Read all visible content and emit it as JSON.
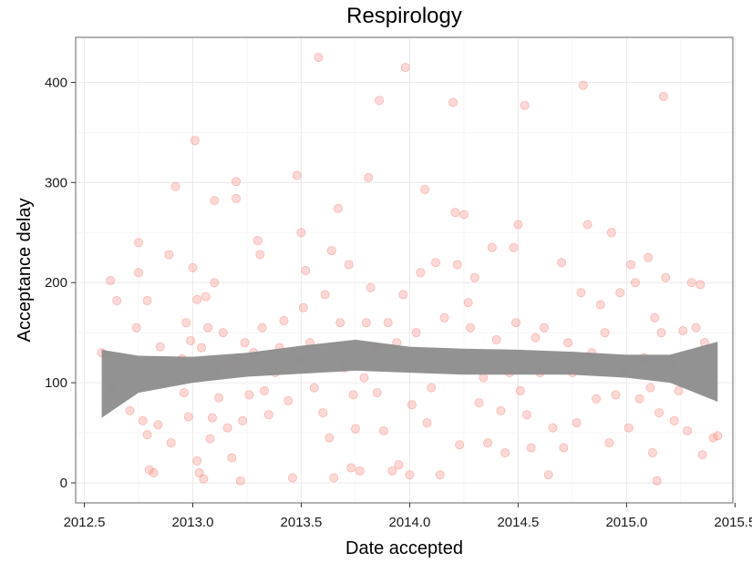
{
  "chart_data": {
    "type": "scatter",
    "title": "Respirology",
    "xlabel": "Date accepted",
    "ylabel": "Acceptance delay",
    "xlim": [
      2012.46,
      2015.49
    ],
    "ylim": [
      -20,
      445
    ],
    "x_ticks": [
      2012.5,
      2013.0,
      2013.5,
      2014.0,
      2014.5,
      2015.0,
      2015.5
    ],
    "x_tick_labels": [
      "2012.5",
      "2013.0",
      "2013.5",
      "2014.0",
      "2014.5",
      "2015.0",
      "2015.5"
    ],
    "y_ticks": [
      0,
      100,
      200,
      300,
      400
    ],
    "y_tick_labels": [
      "0",
      "100",
      "200",
      "300",
      "400"
    ],
    "grid": true,
    "colors": {
      "points": "#f8766d",
      "band": "#8c8c8c",
      "panel_border": "#7f7f7f",
      "grid": "#ebebeb"
    },
    "points": [
      [
        2012.58,
        130
      ],
      [
        2012.62,
        202
      ],
      [
        2012.63,
        98
      ],
      [
        2012.65,
        182
      ],
      [
        2012.68,
        112
      ],
      [
        2012.71,
        72
      ],
      [
        2012.72,
        95
      ],
      [
        2012.74,
        155
      ],
      [
        2012.75,
        240
      ],
      [
        2012.75,
        210
      ],
      [
        2012.77,
        62
      ],
      [
        2012.79,
        182
      ],
      [
        2012.79,
        48
      ],
      [
        2012.8,
        13
      ],
      [
        2012.82,
        10
      ],
      [
        2012.84,
        58
      ],
      [
        2012.85,
        136
      ],
      [
        2012.87,
        100
      ],
      [
        2012.89,
        228
      ],
      [
        2012.9,
        40
      ],
      [
        2012.91,
        118
      ],
      [
        2012.92,
        296
      ],
      [
        2012.95,
        124
      ],
      [
        2012.96,
        90
      ],
      [
        2012.97,
        160
      ],
      [
        2012.98,
        66
      ],
      [
        2012.99,
        142
      ],
      [
        2013.0,
        215
      ],
      [
        2013.01,
        342
      ],
      [
        2013.02,
        183
      ],
      [
        2013.02,
        22
      ],
      [
        2013.03,
        10
      ],
      [
        2013.04,
        135
      ],
      [
        2013.05,
        4
      ],
      [
        2013.06,
        186
      ],
      [
        2013.06,
        108
      ],
      [
        2013.07,
        155
      ],
      [
        2013.08,
        44
      ],
      [
        2013.09,
        65
      ],
      [
        2013.1,
        282
      ],
      [
        2013.1,
        200
      ],
      [
        2013.11,
        112
      ],
      [
        2013.12,
        85
      ],
      [
        2013.14,
        150
      ],
      [
        2013.16,
        55
      ],
      [
        2013.17,
        118
      ],
      [
        2013.18,
        25
      ],
      [
        2013.2,
        301
      ],
      [
        2013.2,
        284
      ],
      [
        2013.21,
        125
      ],
      [
        2013.22,
        2
      ],
      [
        2013.23,
        62
      ],
      [
        2013.24,
        140
      ],
      [
        2013.26,
        88
      ],
      [
        2013.28,
        130
      ],
      [
        2013.3,
        242
      ],
      [
        2013.31,
        228
      ],
      [
        2013.32,
        155
      ],
      [
        2013.33,
        92
      ],
      [
        2013.35,
        68
      ],
      [
        2013.38,
        110
      ],
      [
        2013.4,
        135
      ],
      [
        2013.42,
        162
      ],
      [
        2013.44,
        82
      ],
      [
        2013.46,
        5
      ],
      [
        2013.48,
        307
      ],
      [
        2013.49,
        122
      ],
      [
        2013.5,
        250
      ],
      [
        2013.51,
        175
      ],
      [
        2013.52,
        212
      ],
      [
        2013.54,
        140
      ],
      [
        2013.56,
        95
      ],
      [
        2013.58,
        425
      ],
      [
        2013.6,
        70
      ],
      [
        2013.61,
        188
      ],
      [
        2013.63,
        45
      ],
      [
        2013.64,
        232
      ],
      [
        2013.65,
        5
      ],
      [
        2013.67,
        274
      ],
      [
        2013.68,
        160
      ],
      [
        2013.7,
        115
      ],
      [
        2013.72,
        218
      ],
      [
        2013.73,
        15
      ],
      [
        2013.74,
        88
      ],
      [
        2013.75,
        54
      ],
      [
        2013.77,
        12
      ],
      [
        2013.79,
        105
      ],
      [
        2013.8,
        160
      ],
      [
        2013.81,
        305
      ],
      [
        2013.82,
        195
      ],
      [
        2013.84,
        135
      ],
      [
        2013.85,
        90
      ],
      [
        2013.86,
        382
      ],
      [
        2013.88,
        52
      ],
      [
        2013.9,
        160
      ],
      [
        2013.92,
        12
      ],
      [
        2013.94,
        140
      ],
      [
        2013.95,
        18
      ],
      [
        2013.97,
        188
      ],
      [
        2013.98,
        415
      ],
      [
        2014.0,
        8
      ],
      [
        2014.01,
        78
      ],
      [
        2014.03,
        150
      ],
      [
        2014.05,
        210
      ],
      [
        2014.07,
        293
      ],
      [
        2014.08,
        60
      ],
      [
        2014.1,
        95
      ],
      [
        2014.12,
        220
      ],
      [
        2014.14,
        8
      ],
      [
        2014.16,
        165
      ],
      [
        2014.18,
        115
      ],
      [
        2014.2,
        380
      ],
      [
        2014.21,
        270
      ],
      [
        2014.22,
        218
      ],
      [
        2014.23,
        38
      ],
      [
        2014.25,
        268
      ],
      [
        2014.27,
        180
      ],
      [
        2014.28,
        155
      ],
      [
        2014.3,
        205
      ],
      [
        2014.32,
        80
      ],
      [
        2014.34,
        105
      ],
      [
        2014.36,
        40
      ],
      [
        2014.38,
        235
      ],
      [
        2014.4,
        143
      ],
      [
        2014.42,
        72
      ],
      [
        2014.44,
        30
      ],
      [
        2014.46,
        110
      ],
      [
        2014.48,
        235
      ],
      [
        2014.49,
        160
      ],
      [
        2014.5,
        258
      ],
      [
        2014.51,
        92
      ],
      [
        2014.53,
        377
      ],
      [
        2014.54,
        68
      ],
      [
        2014.56,
        35
      ],
      [
        2014.58,
        145
      ],
      [
        2014.6,
        110
      ],
      [
        2014.62,
        155
      ],
      [
        2014.64,
        8
      ],
      [
        2014.66,
        55
      ],
      [
        2014.68,
        120
      ],
      [
        2014.7,
        220
      ],
      [
        2014.71,
        35
      ],
      [
        2014.73,
        140
      ],
      [
        2014.75,
        110
      ],
      [
        2014.77,
        60
      ],
      [
        2014.79,
        190
      ],
      [
        2014.8,
        397
      ],
      [
        2014.82,
        258
      ],
      [
        2014.84,
        130
      ],
      [
        2014.86,
        84
      ],
      [
        2014.88,
        178
      ],
      [
        2014.9,
        150
      ],
      [
        2014.92,
        40
      ],
      [
        2014.93,
        250
      ],
      [
        2014.95,
        88
      ],
      [
        2014.97,
        190
      ],
      [
        2014.99,
        110
      ],
      [
        2015.01,
        55
      ],
      [
        2015.02,
        218
      ],
      [
        2015.04,
        200
      ],
      [
        2015.06,
        84
      ],
      [
        2015.08,
        125
      ],
      [
        2015.1,
        225
      ],
      [
        2015.11,
        95
      ],
      [
        2015.12,
        30
      ],
      [
        2015.13,
        165
      ],
      [
        2015.14,
        2
      ],
      [
        2015.15,
        70
      ],
      [
        2015.16,
        150
      ],
      [
        2015.17,
        386
      ],
      [
        2015.18,
        205
      ],
      [
        2015.2,
        120
      ],
      [
        2015.22,
        62
      ],
      [
        2015.24,
        92
      ],
      [
        2015.26,
        152
      ],
      [
        2015.28,
        52
      ],
      [
        2015.3,
        200
      ],
      [
        2015.32,
        155
      ],
      [
        2015.34,
        198
      ],
      [
        2015.35,
        28
      ],
      [
        2015.36,
        140
      ],
      [
        2015.38,
        118
      ],
      [
        2015.4,
        45
      ],
      [
        2015.42,
        47
      ]
    ],
    "smooth_band": {
      "x": [
        2012.58,
        2012.75,
        2013.0,
        2013.25,
        2013.5,
        2013.75,
        2014.0,
        2014.25,
        2014.5,
        2014.75,
        2015.0,
        2015.2,
        2015.42
      ],
      "upper": [
        133,
        127,
        126,
        130,
        137,
        143,
        136,
        134,
        133,
        131,
        128,
        128,
        141
      ],
      "lower": [
        65,
        90,
        100,
        106,
        109,
        112,
        110,
        108,
        108,
        108,
        105,
        100,
        81
      ]
    }
  }
}
